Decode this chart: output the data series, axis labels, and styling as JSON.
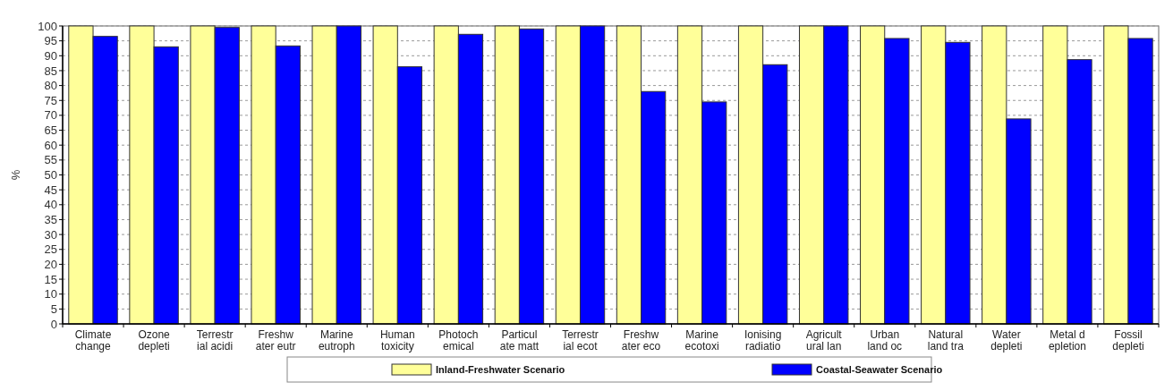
{
  "chart_data": {
    "type": "bar",
    "ylabel": "%",
    "categories": [
      "Climate\nchange",
      "Ozone\ndepleti",
      "Terrestr\nial acidi",
      "Freshw\nater eutr",
      "Marine\neutroph",
      "Human\ntoxicity",
      "Photoch\nemical",
      "Particul\nate matt",
      "Terrestr\nial ecot",
      "Freshw\nater eco",
      "Marine\necotoxi",
      "Ionising\nradiatio",
      "Agricult\nural lan",
      "Urban\nland oc",
      "Natural\nland tra",
      "Water\ndepleti",
      "Metal d\nepletion",
      "Fossil\ndepleti"
    ],
    "series": [
      {
        "name": "Inland-Freshwater Scenario",
        "color": "#ffff99",
        "values": [
          100,
          100,
          100,
          100,
          100,
          100,
          100,
          100,
          100,
          100,
          100,
          100,
          100,
          100,
          100,
          100,
          100,
          100
        ]
      },
      {
        "name": "Coastal-Seawater Scenario",
        "color": "#0000ff",
        "values": [
          96.5,
          93,
          99.5,
          93.3,
          100,
          86.3,
          97.2,
          99,
          100,
          78,
          74.5,
          87,
          100,
          95.8,
          94.5,
          68.8,
          88.7,
          95.8
        ]
      }
    ],
    "ylim": [
      0,
      100
    ],
    "yticks": [
      0,
      5,
      10,
      15,
      20,
      25,
      30,
      35,
      40,
      45,
      50,
      55,
      60,
      65,
      70,
      75,
      80,
      85,
      90,
      95,
      100
    ],
    "grid": "y",
    "legend": "bottom"
  }
}
